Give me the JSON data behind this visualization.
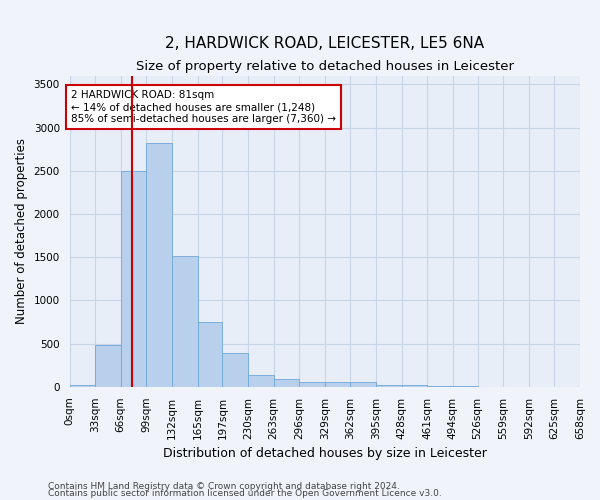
{
  "title": "2, HARDWICK ROAD, LEICESTER, LE5 6NA",
  "subtitle": "Size of property relative to detached houses in Leicester",
  "xlabel": "Distribution of detached houses by size in Leicester",
  "ylabel": "Number of detached properties",
  "bin_edges": [
    0,
    33,
    66,
    99,
    132,
    165,
    197,
    230,
    263,
    296,
    329,
    362,
    395,
    428,
    461,
    494,
    526,
    559,
    592,
    625,
    658
  ],
  "bin_labels": [
    "0sqm",
    "33sqm",
    "66sqm",
    "99sqm",
    "132sqm",
    "165sqm",
    "197sqm",
    "230sqm",
    "263sqm",
    "296sqm",
    "329sqm",
    "362sqm",
    "395sqm",
    "428sqm",
    "461sqm",
    "494sqm",
    "526sqm",
    "559sqm",
    "592sqm",
    "625sqm",
    "658sqm"
  ],
  "bar_heights": [
    25,
    480,
    2500,
    2820,
    1520,
    750,
    390,
    140,
    85,
    60,
    55,
    60,
    25,
    20,
    10,
    5,
    3,
    2,
    1,
    1
  ],
  "bar_color": "#b8d0eb",
  "bar_edge_color": "#6ea8d8",
  "grid_color": "#c8d4e8",
  "bg_color": "#e8eef8",
  "fig_color": "#f0f4fa",
  "red_line_x": 81,
  "annotation_title": "2 HARDWICK ROAD: 81sqm",
  "annotation_line1": "← 14% of detached houses are smaller (1,248)",
  "annotation_line2": "85% of semi-detached houses are larger (7,360) →",
  "annotation_box_color": "#ffffff",
  "annotation_box_edge": "#cc0000",
  "red_line_color": "#cc0000",
  "ylim": [
    0,
    3600
  ],
  "yticks": [
    0,
    500,
    1000,
    1500,
    2000,
    2500,
    3000,
    3500
  ],
  "footer1": "Contains HM Land Registry data © Crown copyright and database right 2024.",
  "footer2": "Contains public sector information licensed under the Open Government Licence v3.0.",
  "title_fontsize": 11,
  "subtitle_fontsize": 9.5,
  "axis_label_fontsize": 8.5,
  "tick_fontsize": 7.5,
  "annotation_fontsize": 7.5,
  "footer_fontsize": 6.5
}
